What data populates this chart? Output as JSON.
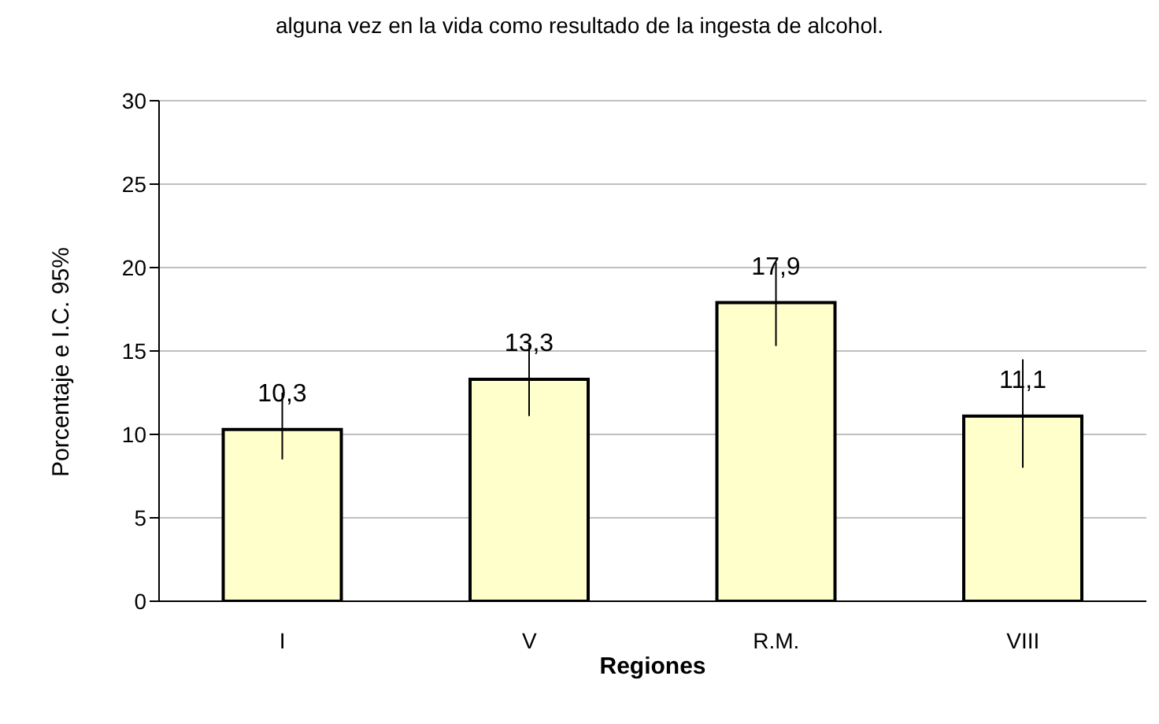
{
  "chart_data": {
    "type": "bar",
    "title": "alguna vez en la vida como resultado de la ingesta de alcohol.",
    "xlabel": "Regiones",
    "ylabel": "Porcentaje e I.C. 95%",
    "categories": [
      "I",
      "V",
      "R.M.",
      "VIII"
    ],
    "values": [
      10.3,
      13.3,
      17.9,
      11.1
    ],
    "color": "#ffffcc",
    "errors": [
      [
        8.5,
        12.5
      ],
      [
        11.1,
        15.4
      ],
      [
        15.3,
        20.3
      ],
      [
        8.0,
        14.5
      ]
    ],
    "value_labels": [
      "10,3",
      "13,3",
      "17,9",
      "11,1"
    ],
    "ylim": [
      0,
      30
    ],
    "yticks": [
      0,
      5,
      10,
      15,
      20,
      25,
      30
    ],
    "grid": "y",
    "legend": false
  }
}
